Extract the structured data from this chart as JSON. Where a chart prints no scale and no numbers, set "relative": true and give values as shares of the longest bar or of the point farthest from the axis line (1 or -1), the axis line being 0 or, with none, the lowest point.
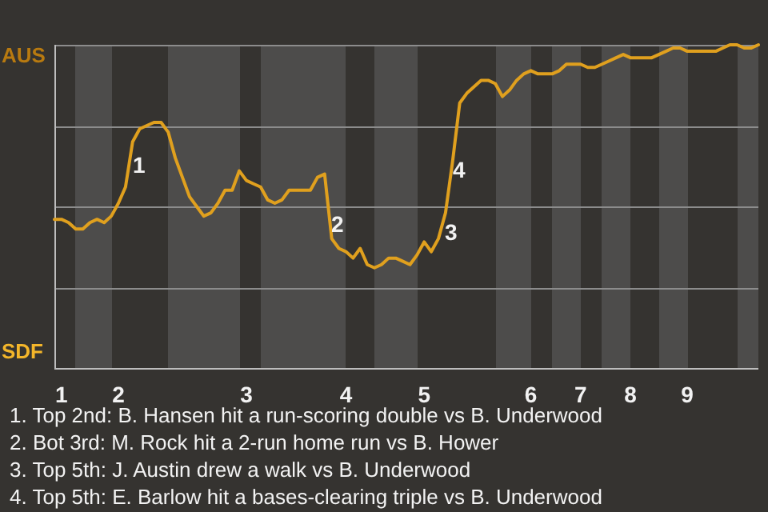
{
  "chart_data": {
    "type": "line",
    "relative": true,
    "categories": [
      null,
      "1",
      null,
      null,
      null,
      null,
      null,
      null,
      null,
      "2",
      null,
      null,
      null,
      null,
      null,
      null,
      null,
      null,
      null,
      null,
      null,
      null,
      null,
      null,
      null,
      null,
      null,
      "3",
      null,
      null,
      null,
      null,
      null,
      null,
      null,
      null,
      null,
      null,
      null,
      null,
      null,
      "4",
      null,
      null,
      null,
      null,
      null,
      null,
      null,
      null,
      null,
      null,
      "5",
      null,
      null,
      null,
      null,
      null,
      null,
      null,
      null,
      null,
      null,
      null,
      null,
      null,
      null,
      "6",
      null,
      null,
      null,
      null,
      null,
      null,
      "7",
      null,
      null,
      null,
      null,
      null,
      null,
      "8",
      null,
      null,
      null,
      null,
      null,
      null,
      null,
      "9",
      null,
      null,
      null,
      null,
      null,
      null,
      null,
      null,
      null,
      null
    ],
    "series": [
      {
        "color": "#e0a01e",
        "values": [
          0.46,
          0.46,
          0.45,
          0.43,
          0.43,
          0.45,
          0.46,
          0.45,
          0.47,
          0.51,
          0.56,
          0.7,
          0.74,
          0.75,
          0.76,
          0.76,
          0.73,
          0.65,
          0.59,
          0.53,
          0.5,
          0.47,
          0.48,
          0.51,
          0.55,
          0.55,
          0.61,
          0.58,
          0.57,
          0.56,
          0.52,
          0.51,
          0.52,
          0.55,
          0.55,
          0.55,
          0.55,
          0.59,
          0.6,
          0.4,
          0.37,
          0.36,
          0.34,
          0.37,
          0.32,
          0.31,
          0.32,
          0.34,
          0.34,
          0.33,
          0.32,
          0.35,
          0.39,
          0.36,
          0.4,
          0.48,
          0.64,
          0.82,
          0.85,
          0.87,
          0.89,
          0.89,
          0.88,
          0.84,
          0.86,
          0.89,
          0.91,
          0.92,
          0.91,
          0.91,
          0.91,
          0.92,
          0.94,
          0.94,
          0.94,
          0.93,
          0.93,
          0.94,
          0.95,
          0.96,
          0.97,
          0.96,
          0.96,
          0.96,
          0.96,
          0.97,
          0.98,
          0.99,
          0.99,
          0.98,
          0.98,
          0.98,
          0.98,
          0.98,
          0.99,
          1,
          1,
          0.99,
          0.99,
          1
        ]
      }
    ],
    "grid": "y",
    "annotations": [
      "AUS",
      "SDF",
      "1",
      "2",
      "3",
      "4",
      "1. Top 2nd: B. Hansen hit a run-scoring double vs B. Underwood",
      "2. Bot 3rd: M. Rock hit a 2-run home run vs B. Hower",
      "3. Top 5th: J. Austin drew a walk vs B. Underwood",
      "4. Top 5th: E. Barlow hit a bases-clearing triple vs B. Underwood"
    ]
  }
}
